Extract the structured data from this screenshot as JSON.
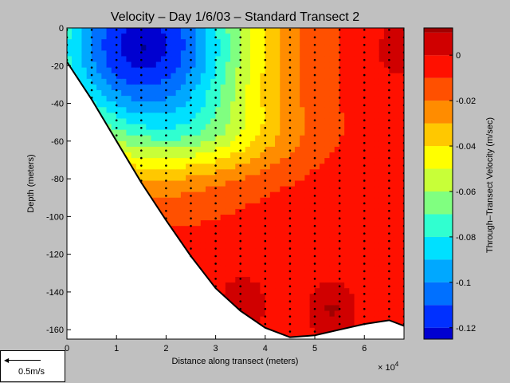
{
  "chart_data": {
    "type": "heatmap",
    "title": "Velocity – Day 1/6/03 – Standard Transect 2",
    "xlabel": "Distance along transect (meters)",
    "ylabel": "Depth (meters)",
    "x_multiplier": "× 10",
    "x_multiplier_exp": "4",
    "xlim": [
      0,
      68000
    ],
    "ylim": [
      -165,
      0
    ],
    "x_ticks": [
      0,
      1,
      2,
      3,
      4,
      5,
      6
    ],
    "y_ticks": [
      0,
      -20,
      -40,
      -60,
      -80,
      -100,
      -120,
      -140,
      -160
    ],
    "colorbar": {
      "label": "Through–Transect Velocity (m/sec)",
      "range": [
        -0.125,
        0.012
      ],
      "ticks": [
        "0",
        "-0.02",
        "-0.04",
        "-0.06",
        "-0.08",
        "-0.1",
        "-0.12"
      ],
      "tick_values": [
        0,
        -0.02,
        -0.04,
        -0.06,
        -0.08,
        -0.1,
        -0.12
      ],
      "levels": [
        -0.125,
        -0.12,
        -0.11,
        -0.1,
        -0.09,
        -0.08,
        -0.07,
        -0.06,
        -0.05,
        -0.04,
        -0.03,
        -0.02,
        -0.01,
        0,
        0.01
      ],
      "colors": [
        "#00008f",
        "#0000d0",
        "#0030ff",
        "#0070ff",
        "#00a8ff",
        "#00e0ff",
        "#30ffd0",
        "#80ff80",
        "#c8ff38",
        "#ffff00",
        "#ffc800",
        "#ff8c00",
        "#ff5000",
        "#ff1000",
        "#d00000",
        "#a00000"
      ]
    },
    "bottom_profile": [
      [
        0,
        -18
      ],
      [
        5000,
        -38
      ],
      [
        10000,
        -60
      ],
      [
        15000,
        -82
      ],
      [
        20000,
        -102
      ],
      [
        25000,
        -121
      ],
      [
        30000,
        -138
      ],
      [
        35000,
        -150
      ],
      [
        40000,
        -159
      ],
      [
        45000,
        -164
      ],
      [
        50000,
        -163
      ],
      [
        55000,
        -160
      ],
      [
        60000,
        -157
      ],
      [
        65000,
        -155
      ],
      [
        68000,
        -158
      ]
    ],
    "stations": [
      {
        "x": 0,
        "depth": -18
      },
      {
        "x": 5000,
        "depth": -38
      },
      {
        "x": 10000,
        "depth": -60
      },
      {
        "x": 15000,
        "depth": -82
      },
      {
        "x": 20000,
        "depth": -102
      },
      {
        "x": 25000,
        "depth": -121
      },
      {
        "x": 30000,
        "depth": -138
      },
      {
        "x": 35000,
        "depth": -150
      },
      {
        "x": 40000,
        "depth": -159
      },
      {
        "x": 45000,
        "depth": -164
      },
      {
        "x": 50000,
        "depth": -163
      },
      {
        "x": 55000,
        "depth": -160
      },
      {
        "x": 60000,
        "depth": -157
      },
      {
        "x": 65000,
        "depth": -155
      },
      {
        "x": 68000,
        "depth": -158
      }
    ],
    "velocity_features": [
      {
        "x": 15000,
        "depth": -8,
        "velocity": -0.125,
        "note": "surface core of negative flow"
      },
      {
        "x": 35000,
        "depth": -145,
        "velocity": 0.01
      },
      {
        "x": 53000,
        "depth": -148,
        "velocity": 0.012
      },
      {
        "x": 66000,
        "depth": -10,
        "velocity": 0.008
      }
    ]
  },
  "scale": {
    "label": "0.5m/s"
  }
}
